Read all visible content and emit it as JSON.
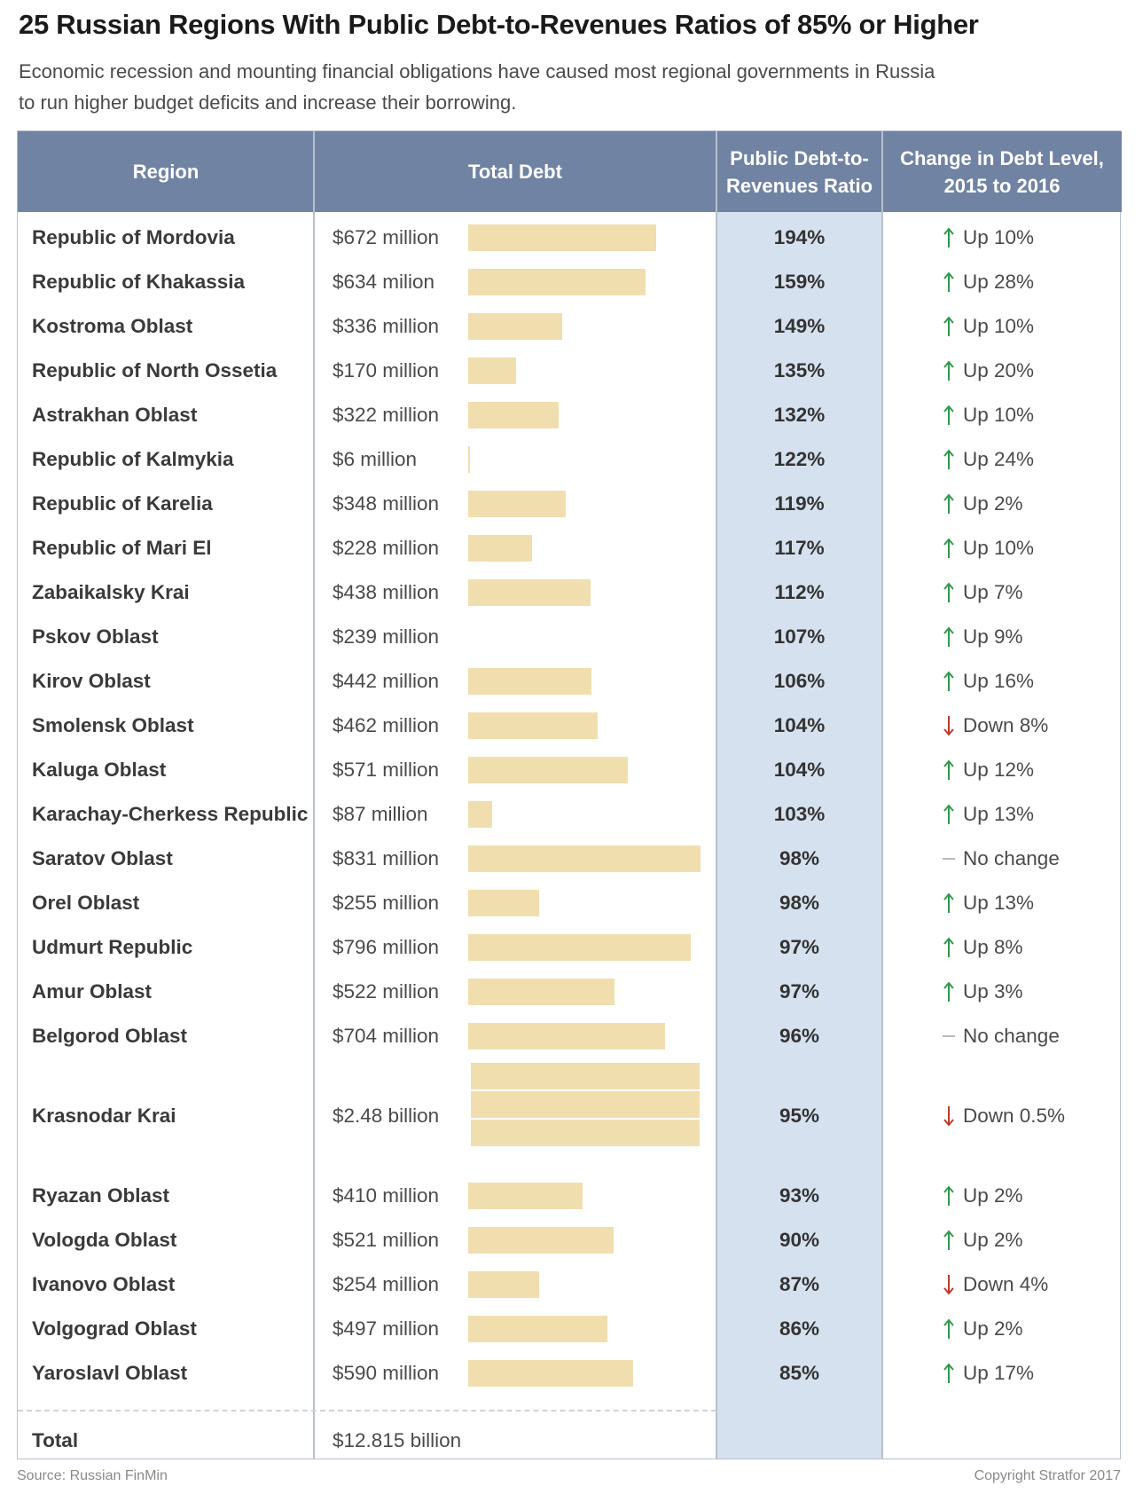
{
  "chart_data": {
    "type": "table",
    "title": "25 Russian Regions With Public Debt-to-Revenues Ratios of 85% or Higher",
    "subtitle": "Economic recession and mounting financial obligations have caused most regional governments in Russia to run higher budget deficits and increase their borrowing.",
    "columns": [
      "Region",
      "Total Debt",
      "Public Debt-to-Revenues Ratio",
      "Change in Debt Level, 2015 to 2016"
    ],
    "colors": {
      "header": "#7083a3",
      "ratio_column": "#d5e1ee",
      "bar": "#f1deaf",
      "up": "#2e9a4b",
      "down": "#c0392b",
      "none": "#b8b8b8"
    },
    "rows": [
      {
        "region": "Republic of Mordovia",
        "debt": "$672 million",
        "debt_musd": 672,
        "ratio": "194%",
        "direction": "up",
        "change": "Up 10%",
        "bar": true
      },
      {
        "region": "Republic of Khakassia",
        "debt": "$634 milion",
        "debt_musd": 634,
        "ratio": "159%",
        "direction": "up",
        "change": "Up 28%",
        "bar": true
      },
      {
        "region": "Kostroma Oblast",
        "debt": "$336 million",
        "debt_musd": 336,
        "ratio": "149%",
        "direction": "up",
        "change": "Up 10%",
        "bar": true
      },
      {
        "region": "Republic of North Ossetia",
        "debt": "$170 million",
        "debt_musd": 170,
        "ratio": "135%",
        "direction": "up",
        "change": "Up 20%",
        "bar": true
      },
      {
        "region": "Astrakhan Oblast",
        "debt": "$322 million",
        "debt_musd": 322,
        "ratio": "132%",
        "direction": "up",
        "change": "Up 10%",
        "bar": true
      },
      {
        "region": "Republic of Kalmykia",
        "debt": "$6 million",
        "debt_musd": 6,
        "ratio": "122%",
        "direction": "up",
        "change": "Up 24%",
        "bar": true
      },
      {
        "region": "Republic of Karelia",
        "debt": "$348 million",
        "debt_musd": 348,
        "ratio": "119%",
        "direction": "up",
        "change": "Up 2%",
        "bar": true
      },
      {
        "region": "Republic of Mari El",
        "debt": "$228 million",
        "debt_musd": 228,
        "ratio": "117%",
        "direction": "up",
        "change": "Up 10%",
        "bar": true
      },
      {
        "region": "Zabaikalsky Krai",
        "debt": "$438 million",
        "debt_musd": 438,
        "ratio": "112%",
        "direction": "up",
        "change": "Up 7%",
        "bar": true
      },
      {
        "region": "Pskov Oblast",
        "debt": "$239 million",
        "debt_musd": 239,
        "ratio": "107%",
        "direction": "up",
        "change": "Up 9%",
        "bar": false
      },
      {
        "region": "Kirov Oblast",
        "debt": "$442 million",
        "debt_musd": 442,
        "ratio": "106%",
        "direction": "up",
        "change": "Up 16%",
        "bar": true
      },
      {
        "region": "Smolensk Oblast",
        "debt": "$462 million",
        "debt_musd": 462,
        "ratio": "104%",
        "direction": "down",
        "change": "Down 8%",
        "bar": true
      },
      {
        "region": "Kaluga Oblast",
        "debt": "$571 million",
        "debt_musd": 571,
        "ratio": "104%",
        "direction": "up",
        "change": "Up 12%",
        "bar": true
      },
      {
        "region": "Karachay-Cherkess Republic",
        "debt": "$87 million",
        "debt_musd": 87,
        "ratio": "103%",
        "direction": "up",
        "change": "Up 13%",
        "bar": true
      },
      {
        "region": "Saratov Oblast",
        "debt": "$831 million",
        "debt_musd": 831,
        "ratio": "98%",
        "direction": "none",
        "change": "No change",
        "bar": true
      },
      {
        "region": "Orel Oblast",
        "debt": "$255 million",
        "debt_musd": 255,
        "ratio": "98%",
        "direction": "up",
        "change": "Up 13%",
        "bar": true
      },
      {
        "region": "Udmurt Republic",
        "debt": "$796 million",
        "debt_musd": 796,
        "ratio": "97%",
        "direction": "up",
        "change": "Up 8%",
        "bar": true
      },
      {
        "region": "Amur Oblast",
        "debt": "$522 million",
        "debt_musd": 522,
        "ratio": "97%",
        "direction": "up",
        "change": "Up 3%",
        "bar": true
      },
      {
        "region": "Belgorod Oblast",
        "debt": "$704 million",
        "debt_musd": 704,
        "ratio": "96%",
        "direction": "none",
        "change": "No change",
        "bar": true
      },
      {
        "region": "Krasnodar Krai",
        "debt": "$2.48 billion",
        "debt_musd": 2480,
        "ratio": "95%",
        "direction": "down",
        "change": "Down 0.5%",
        "bar": true,
        "tall": true
      },
      {
        "region": "Ryazan Oblast",
        "debt": "$410 million",
        "debt_musd": 410,
        "ratio": "93%",
        "direction": "up",
        "change": "Up 2%",
        "bar": true
      },
      {
        "region": "Vologda Oblast",
        "debt": "$521 million",
        "debt_musd": 521,
        "ratio": "90%",
        "direction": "up",
        "change": "Up 2%",
        "bar": true
      },
      {
        "region": "Ivanovo Oblast",
        "debt": "$254 million",
        "debt_musd": 254,
        "ratio": "87%",
        "direction": "down",
        "change": "Down 4%",
        "bar": true
      },
      {
        "region": "Volgograd Oblast",
        "debt": "$497 million",
        "debt_musd": 497,
        "ratio": "86%",
        "direction": "up",
        "change": "Up 2%",
        "bar": true
      },
      {
        "region": "Yaroslavl Oblast",
        "debt": "$590 million",
        "debt_musd": 590,
        "ratio": "85%",
        "direction": "up",
        "change": "Up 17%",
        "bar": true
      }
    ],
    "total": {
      "label": "Total",
      "debt": "$12.815 billion"
    }
  },
  "footer": {
    "source": "Source: Russian FinMin",
    "copyright": "Copyright Stratfor 2017"
  }
}
